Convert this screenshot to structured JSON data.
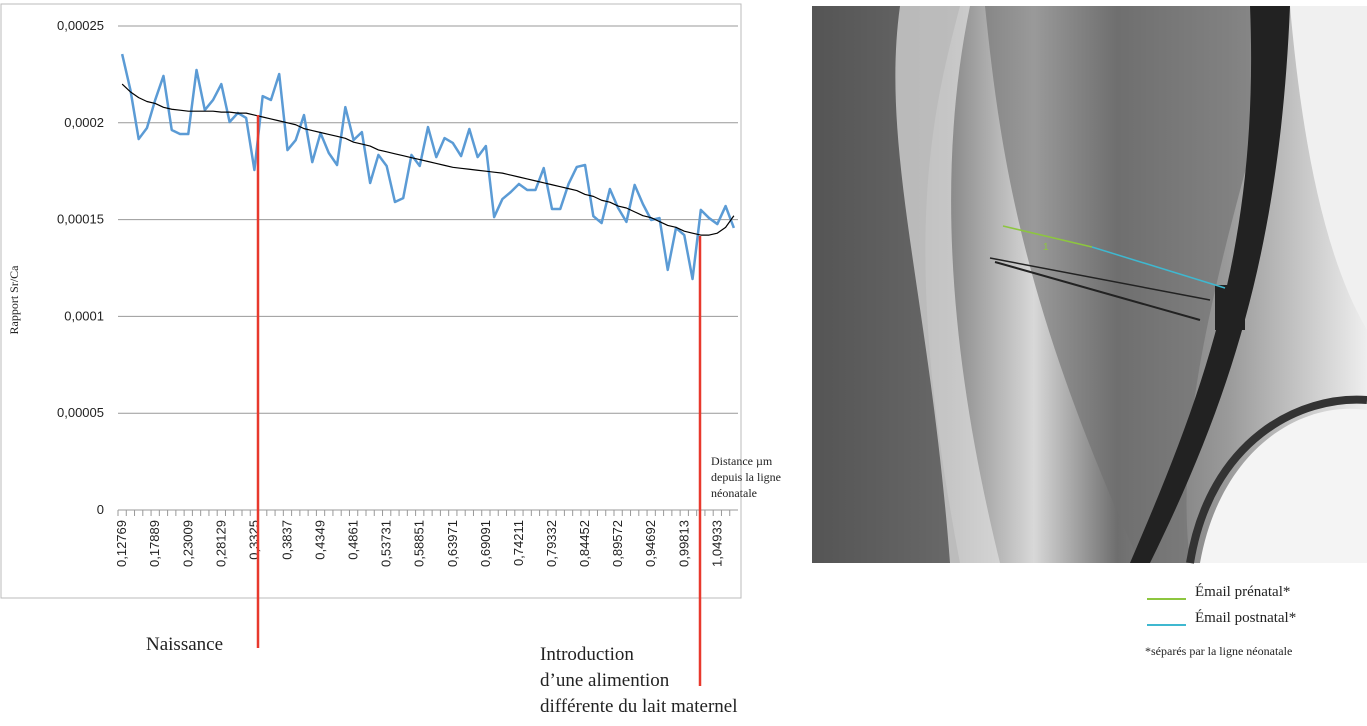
{
  "chart_data": {
    "type": "line",
    "y_label": "Rapport Sr/Ca",
    "x_label": [
      "Distance µm",
      "depuis la ligne",
      "néonatale"
    ],
    "categories": [
      "0,12769",
      null,
      null,
      null,
      "0,17889",
      null,
      null,
      null,
      "0,23009",
      null,
      null,
      null,
      "0,28129",
      null,
      null,
      null,
      "0,3325",
      null,
      null,
      null,
      "0,3837",
      null,
      null,
      null,
      "0,4349",
      null,
      null,
      null,
      "0,4861",
      null,
      null,
      null,
      "0,53731",
      null,
      null,
      null,
      "0,58851",
      null,
      null,
      null,
      "0,63971",
      null,
      null,
      null,
      "0,69091",
      null,
      null,
      null,
      "0,74211",
      null,
      null,
      null,
      "0,79332",
      null,
      null,
      null,
      "0,84452",
      null,
      null,
      null,
      "0,89572",
      null,
      null,
      null,
      "0,94692",
      null,
      null,
      null,
      "0,99813",
      null,
      null,
      null,
      "1,04933",
      null,
      null
    ],
    "series": [
      {
        "color": "#5b9bd5",
        "width": 2.5,
        "values": [
          0.0002355,
          0.000217,
          0.0001916,
          0.0001973,
          0.0002118,
          0.0002242,
          0.0001963,
          0.0001942,
          0.0001942,
          0.0002273,
          0.0002066,
          0.0002118,
          0.00022,
          0.0002004,
          0.0002051,
          0.0002025,
          0.0001756,
          0.0002138,
          0.0002118,
          0.0002252,
          0.0001859,
          0.0001911,
          0.000204,
          0.0001797,
          0.0001947,
          0.0001844,
          0.0001782,
          0.0002081,
          0.0001911,
          0.0001952,
          0.0001689,
          0.0001834,
          0.0001777,
          0.0001591,
          0.0001611,
          0.0001834,
          0.0001777,
          0.0001978,
          0.0001823,
          0.0001921,
          0.0001896,
          0.0001828,
          0.0001968,
          0.0001823,
          0.000188,
          0.0001513,
          0.0001606,
          0.0001642,
          0.0001684,
          0.0001653,
          0.0001653,
          0.0001766,
          0.0001555,
          0.0001555,
          0.0001684,
          0.0001772,
          0.0001782,
          0.0001518,
          0.0001482,
          0.0001658,
          0.000156,
          0.0001488,
          0.0001679,
          0.000158,
          0.0001498,
          0.0001508,
          0.000124,
          0.0001457,
          0.000142,
          0.0001193,
          0.000155,
          0.0001508,
          0.0001477,
          0.000157,
          0.0001457
        ]
      },
      {
        "color": "#000000",
        "width": 1.2,
        "values": [
          0.00022,
          0.000216,
          0.000213,
          0.000211,
          0.00021,
          0.000208,
          0.000207,
          0.0002065,
          0.000206,
          0.000206,
          0.000206,
          0.000206,
          0.0002055,
          0.0002055,
          0.000205,
          0.000205,
          0.000204,
          0.000203,
          0.000202,
          0.000201,
          0.0002,
          0.000199,
          0.000197,
          0.000196,
          0.000195,
          0.000194,
          0.000193,
          0.000192,
          0.00019,
          0.000189,
          0.000188,
          0.000186,
          0.000185,
          0.000184,
          0.000183,
          0.000182,
          0.000181,
          0.00018,
          0.000179,
          0.000178,
          0.000177,
          0.0001765,
          0.000176,
          0.0001755,
          0.000175,
          0.0001745,
          0.000174,
          0.000173,
          0.000172,
          0.000171,
          0.00017,
          0.000169,
          0.000168,
          0.000167,
          0.000166,
          0.000165,
          0.000163,
          0.000162,
          0.00016,
          0.000159,
          0.000157,
          0.000156,
          0.000154,
          0.000152,
          0.000151,
          0.000149,
          0.000147,
          0.000146,
          0.000144,
          0.000143,
          0.000142,
          0.000142,
          0.000143,
          0.000146,
          0.000152
        ]
      }
    ],
    "ylim": [
      0,
      0.00025
    ],
    "yticks": [
      0,
      {
        "value": 5e-05,
        "label": "0,00005"
      },
      {
        "value": 0.0001,
        "label": "0,0001"
      },
      {
        "value": 0.00015,
        "label": "0,00015"
      },
      {
        "value": 0.0002,
        "label": "0,0002"
      },
      {
        "value": 0.00025,
        "label": "0,00025"
      }
    ],
    "grid": true,
    "annotations": [
      {
        "text": [
          "Naissance"
        ],
        "color": "#e8392d"
      },
      {
        "text": [
          "Introduction",
          "d’une alimention",
          "différente du lait maternel"
        ],
        "color": "#e8392d"
      }
    ]
  },
  "image_panel": {
    "marker_label": "1",
    "legend": [
      {
        "label": "Émail prénatal*",
        "color": "#8dc63f"
      },
      {
        "label": "Émail postnatal*",
        "color": "#3fb8d0"
      }
    ],
    "note": "*séparés par la ligne néonatale"
  }
}
